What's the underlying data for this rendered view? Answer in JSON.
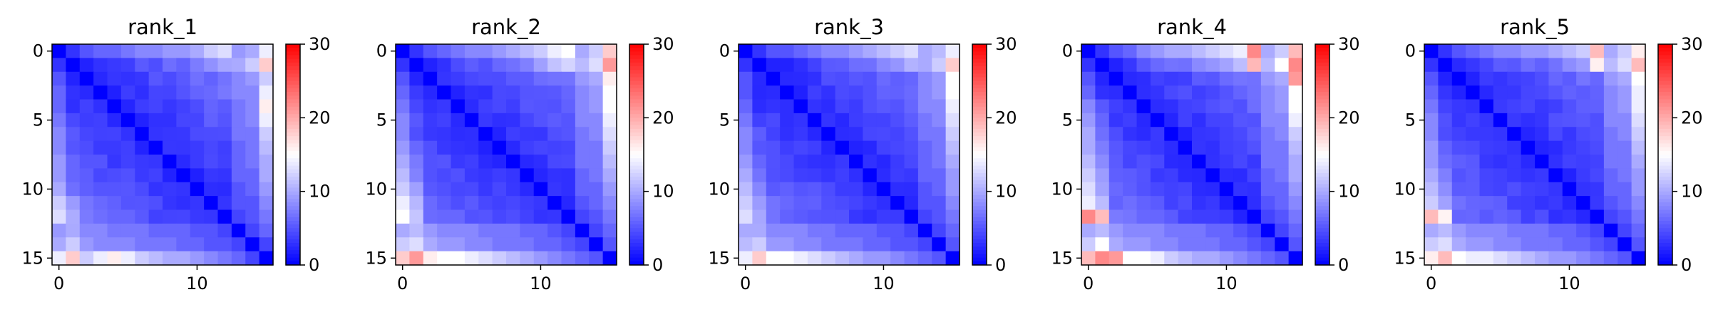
{
  "figure": {
    "colormap": {
      "name": "bwr",
      "low": "#0000ff",
      "mid": "#ffffff",
      "high": "#ff0000"
    }
  },
  "chart_data": [
    {
      "type": "heatmap",
      "title": "rank_1",
      "size": 16,
      "x_ticks": [
        0,
        10
      ],
      "y_ticks": [
        0,
        5,
        10,
        15
      ],
      "colorbar": {
        "range": [
          0,
          30
        ],
        "ticks": [
          0,
          10,
          20,
          30
        ]
      },
      "first_row": [
        0,
        3,
        5,
        6,
        6,
        7,
        8,
        8,
        9,
        9,
        10,
        12,
        13,
        15,
        18,
        13
      ],
      "last_row": [
        14,
        18,
        12,
        14,
        16,
        14,
        12,
        11,
        10,
        10,
        9,
        8,
        7,
        6,
        4,
        0
      ],
      "second_last_row": [
        10,
        12,
        9,
        8,
        8,
        8,
        7,
        7,
        7,
        6,
        6,
        5,
        5,
        4,
        0,
        4
      ],
      "row14": [
        9,
        10,
        8,
        8,
        7,
        7,
        7,
        6,
        6,
        6,
        5,
        5,
        4,
        0,
        4,
        6
      ]
    },
    {
      "type": "heatmap",
      "title": "rank_2",
      "size": 16,
      "x_ticks": [
        0,
        10
      ],
      "y_ticks": [
        0,
        5,
        10,
        15
      ],
      "colorbar": {
        "range": [
          0,
          30
        ],
        "ticks": [
          0,
          10,
          20,
          30
        ]
      },
      "first_row": [
        0,
        3,
        5,
        6,
        7,
        8,
        8,
        9,
        10,
        11,
        12,
        14,
        15,
        17,
        20,
        16
      ],
      "last_row": [
        18,
        21,
        16,
        15,
        15,
        14,
        13,
        12,
        11,
        10,
        9,
        8,
        7,
        6,
        5,
        0
      ],
      "second_last_row": [
        12,
        13,
        10,
        9,
        9,
        8,
        8,
        7,
        7,
        7,
        6,
        6,
        5,
        4,
        0,
        5
      ],
      "row14": [
        10,
        11,
        9,
        8,
        8,
        8,
        7,
        7,
        7,
        6,
        6,
        5,
        4,
        0,
        4,
        6
      ]
    },
    {
      "type": "heatmap",
      "title": "rank_3",
      "size": 16,
      "x_ticks": [
        0,
        10
      ],
      "y_ticks": [
        0,
        5,
        10,
        15
      ],
      "colorbar": {
        "range": [
          0,
          30
        ],
        "ticks": [
          0,
          10,
          20,
          30
        ]
      },
      "first_row": [
        0,
        3,
        5,
        5,
        6,
        7,
        8,
        8,
        9,
        10,
        11,
        12,
        13,
        14,
        15,
        12
      ],
      "last_row": [
        14,
        18,
        15,
        15,
        14,
        13,
        12,
        11,
        10,
        9,
        9,
        8,
        7,
        6,
        5,
        0
      ],
      "second_last_row": [
        11,
        12,
        9,
        9,
        8,
        8,
        7,
        7,
        7,
        6,
        6,
        5,
        5,
        4,
        0,
        4
      ],
      "row14": [
        10,
        10,
        8,
        8,
        8,
        7,
        7,
        6,
        6,
        6,
        5,
        5,
        4,
        0,
        4,
        6
      ]
    },
    {
      "type": "heatmap",
      "title": "rank_4",
      "size": 16,
      "x_ticks": [
        0,
        10
      ],
      "y_ticks": [
        0,
        5,
        10,
        15
      ],
      "colorbar": {
        "range": [
          0,
          30
        ],
        "ticks": [
          0,
          10,
          20,
          30
        ]
      },
      "first_row": [
        0,
        3,
        5,
        6,
        8,
        9,
        10,
        10,
        11,
        12,
        13,
        14,
        22,
        23,
        23,
        22
      ],
      "last_row": [
        19,
        22,
        21,
        15,
        15,
        14,
        12,
        11,
        10,
        10,
        9,
        8,
        7,
        6,
        5,
        0
      ],
      "second_last_row": [
        12,
        15,
        10,
        9,
        9,
        8,
        8,
        7,
        7,
        7,
        6,
        6,
        5,
        4,
        0,
        5
      ],
      "row14": [
        10,
        11,
        9,
        8,
        8,
        8,
        7,
        7,
        7,
        6,
        6,
        5,
        4,
        0,
        4,
        6
      ]
    },
    {
      "type": "heatmap",
      "title": "rank_5",
      "size": 16,
      "x_ticks": [
        0,
        10
      ],
      "y_ticks": [
        0,
        5,
        10,
        15
      ],
      "colorbar": {
        "range": [
          0,
          30
        ],
        "ticks": [
          0,
          10,
          20,
          30
        ]
      },
      "first_row": [
        0,
        3,
        5,
        6,
        7,
        8,
        8,
        9,
        9,
        10,
        11,
        12,
        19,
        18,
        17,
        14
      ],
      "last_row": [
        16,
        19,
        15,
        14,
        14,
        13,
        12,
        11,
        10,
        9,
        9,
        8,
        7,
        6,
        5,
        0
      ],
      "second_last_row": [
        12,
        13,
        10,
        9,
        9,
        8,
        8,
        7,
        7,
        7,
        6,
        6,
        5,
        4,
        0,
        5
      ],
      "row14": [
        10,
        11,
        9,
        8,
        8,
        8,
        7,
        7,
        7,
        6,
        6,
        5,
        4,
        0,
        4,
        6
      ]
    }
  ]
}
